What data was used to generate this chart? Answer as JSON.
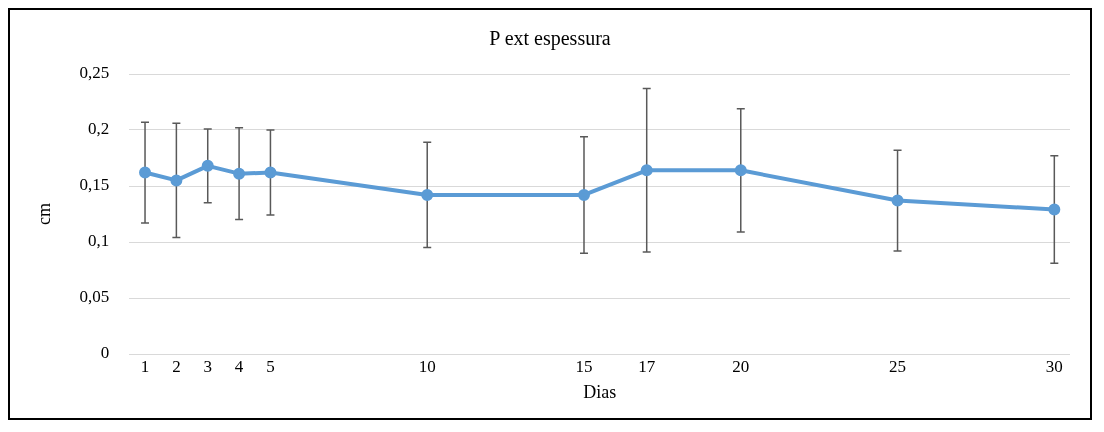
{
  "chart_data": {
    "type": "line",
    "title": "P ext espessura",
    "xlabel": "Dias",
    "ylabel": "cm",
    "x": [
      1,
      2,
      3,
      4,
      5,
      10,
      15,
      17,
      20,
      25,
      30
    ],
    "series": [
      {
        "color": "#5b9bd5",
        "values": [
          0.162,
          0.155,
          0.168,
          0.161,
          0.162,
          0.142,
          0.142,
          0.164,
          0.164,
          0.137,
          0.129
        ],
        "errors": [
          0.045,
          0.051,
          0.033,
          0.041,
          0.038,
          0.047,
          0.052,
          0.073,
          0.055,
          0.045,
          0.048
        ]
      }
    ],
    "xlim": [
      0.5,
      30.5
    ],
    "xticks": [
      1,
      2,
      3,
      4,
      5,
      10,
      15,
      17,
      20,
      25,
      30
    ],
    "ylim": [
      0,
      0.25
    ],
    "yticks": [
      0,
      {
        "value": 0.05,
        "label": "0,05"
      },
      {
        "value": 0.1,
        "label": "0,1"
      },
      {
        "value": 0.15,
        "label": "0,15"
      },
      {
        "value": 0.2,
        "label": "0,2"
      },
      {
        "value": 0.25,
        "label": "0,25"
      }
    ],
    "grid": "y",
    "legend": false,
    "marker": "circle",
    "line_style": "solid"
  }
}
